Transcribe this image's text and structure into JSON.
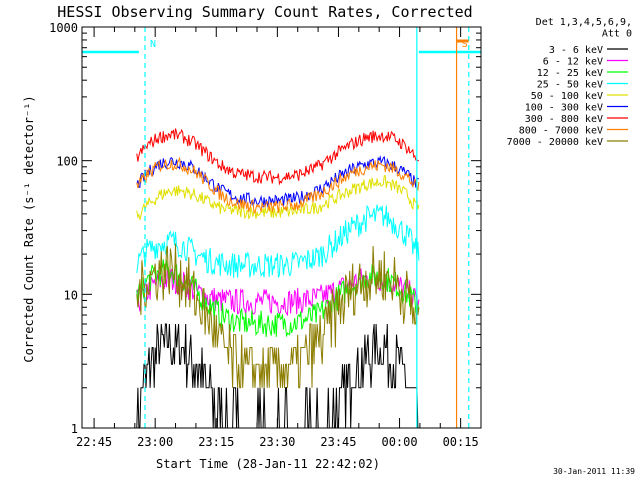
{
  "chart_data": {
    "type": "line",
    "title": "HESSI Observing Summary Count Rates, Corrected",
    "xlabel": "Start Time (28-Jan-11 22:42:02)",
    "ylabel": "Corrected Count Rate (s⁻¹ detector⁻¹)",
    "y_scale": "log",
    "ylim": [
      1,
      1000
    ],
    "xlim": [
      "22:42:02",
      "00:20:00"
    ],
    "x_ticks": [
      "22:45",
      "23:00",
      "23:15",
      "23:30",
      "23:45",
      "00:00",
      "00:15"
    ],
    "y_ticks": [
      "1",
      "10",
      "100",
      "1000"
    ],
    "legend_title_lines": [
      "Det 1,3,4,5,6,9,",
      "Att 0"
    ],
    "legend_position": "right",
    "timestamp": "30-Jan-2011 11:39",
    "data_gap_end": "22:55:30",
    "data_gap_start": "00:04:45",
    "series": [
      {
        "name": "3 - 6 keV",
        "color": "#000000",
        "x": [
          "22:55:30",
          "22:58",
          "23:01",
          "23:04",
          "23:07",
          "23:10",
          "23:13",
          "23:16",
          "23:20",
          "23:25",
          "23:30",
          "23:35",
          "23:40",
          "23:44",
          "23:48",
          "23:52",
          "23:56",
          "23:59",
          "00:02",
          "00:04"
        ],
        "y": [
          1.5,
          2.5,
          4.0,
          4.3,
          3.8,
          3.0,
          2.0,
          1.3,
          1.0,
          1.0,
          1.0,
          1.0,
          1.0,
          1.3,
          2.2,
          3.5,
          4.0,
          3.2,
          2.2,
          1.3
        ]
      },
      {
        "name": "6 - 12 keV",
        "color": "#ff00ff",
        "x": [
          "22:55:30",
          "22:58",
          "23:01",
          "23:04",
          "23:07",
          "23:10",
          "23:13",
          "23:16",
          "23:20",
          "23:25",
          "23:30",
          "23:35",
          "23:40",
          "23:44",
          "23:48",
          "23:52",
          "23:56",
          "23:59",
          "00:02",
          "00:04"
        ],
        "y": [
          8.5,
          10.5,
          12.5,
          13.0,
          12.0,
          10.5,
          9.5,
          9.0,
          8.8,
          8.8,
          8.8,
          8.9,
          9.3,
          10.5,
          12.0,
          13.2,
          13.0,
          12.0,
          10.5,
          9.0
        ]
      },
      {
        "name": "12 - 25 keV",
        "color": "#00ff00",
        "x": [
          "22:55:30",
          "22:58",
          "23:01",
          "23:04",
          "23:07",
          "23:10",
          "23:13",
          "23:16",
          "23:20",
          "23:25",
          "23:30",
          "23:35",
          "23:40",
          "23:44",
          "23:48",
          "23:52",
          "23:56",
          "23:59",
          "00:02",
          "00:04"
        ],
        "y": [
          9.5,
          12.5,
          14.5,
          15.0,
          13.0,
          10.5,
          8.5,
          7.0,
          6.2,
          6.0,
          6.0,
          6.2,
          7.0,
          9.0,
          11.5,
          13.5,
          13.5,
          12.0,
          10.0,
          8.5
        ]
      },
      {
        "name": "25 - 50 keV",
        "color": "#00ffff",
        "x": [
          "22:55:30",
          "22:58",
          "23:01",
          "23:04",
          "23:07",
          "23:10",
          "23:13",
          "23:16",
          "23:20",
          "23:25",
          "23:30",
          "23:35",
          "23:40",
          "23:44",
          "23:48",
          "23:52",
          "23:56",
          "23:59",
          "00:02",
          "00:04"
        ],
        "y": [
          17,
          21,
          24,
          25,
          23,
          20,
          18,
          17,
          16.5,
          16.5,
          16.5,
          17,
          19,
          24,
          31,
          37,
          39,
          34,
          27,
          21
        ]
      },
      {
        "name": "50 - 100 keV",
        "color": "#e0e000",
        "x": [
          "22:55:30",
          "22:58",
          "23:01",
          "23:04",
          "23:07",
          "23:10",
          "23:13",
          "23:16",
          "23:20",
          "23:25",
          "23:30",
          "23:35",
          "23:40",
          "23:44",
          "23:48",
          "23:52",
          "23:56",
          "23:59",
          "00:02",
          "00:04"
        ],
        "y": [
          38,
          46,
          55,
          60,
          59,
          55,
          49,
          44,
          42,
          41,
          41,
          42,
          45,
          52,
          60,
          67,
          70,
          64,
          55,
          45
        ]
      },
      {
        "name": "100 - 300 keV",
        "color": "#0000ff",
        "x": [
          "22:55:30",
          "22:58",
          "23:01",
          "23:04",
          "23:07",
          "23:10",
          "23:13",
          "23:16",
          "23:20",
          "23:25",
          "23:30",
          "23:35",
          "23:40",
          "23:44",
          "23:48",
          "23:52",
          "23:56",
          "23:59",
          "00:02",
          "00:04"
        ],
        "y": [
          65,
          80,
          95,
          100,
          96,
          86,
          72,
          60,
          53,
          50,
          50,
          52,
          60,
          72,
          85,
          95,
          97,
          90,
          78,
          67
        ]
      },
      {
        "name": "300 - 800 keV",
        "color": "#ff0000",
        "x": [
          "22:55:30",
          "22:58",
          "23:01",
          "23:04",
          "23:07",
          "23:10",
          "23:13",
          "23:16",
          "23:20",
          "23:25",
          "23:30",
          "23:35",
          "23:40",
          "23:44",
          "23:48",
          "23:52",
          "23:56",
          "23:59",
          "00:02",
          "00:04"
        ],
        "y": [
          105,
          130,
          150,
          158,
          150,
          132,
          110,
          92,
          80,
          76,
          75,
          78,
          90,
          110,
          132,
          150,
          155,
          145,
          125,
          105
        ]
      },
      {
        "name": "800 - 7000 keV",
        "color": "#ff8000",
        "x": [
          "22:55:30",
          "22:58",
          "23:01",
          "23:04",
          "23:07",
          "23:10",
          "23:13",
          "23:16",
          "23:20",
          "23:25",
          "23:30",
          "23:35",
          "23:40",
          "23:44",
          "23:48",
          "23:52",
          "23:56",
          "23:59",
          "00:02",
          "00:04"
        ],
        "y": [
          63,
          78,
          92,
          96,
          92,
          82,
          68,
          56,
          48,
          45,
          45,
          47,
          55,
          67,
          80,
          90,
          93,
          86,
          75,
          64
        ]
      },
      {
        "name": "7000 - 20000 keV",
        "color": "#8c7d00",
        "x": [
          "22:55:30",
          "22:58",
          "23:01",
          "23:04",
          "23:07",
          "23:10",
          "23:13",
          "23:16",
          "23:20",
          "23:25",
          "23:30",
          "23:35",
          "23:40",
          "23:44",
          "23:48",
          "23:52",
          "23:56",
          "23:59",
          "00:02",
          "00:04"
        ],
        "y": [
          9.5,
          12.5,
          15.0,
          15.5,
          13.0,
          9.5,
          6.5,
          4.2,
          3.0,
          2.7,
          2.7,
          3.0,
          4.3,
          7.0,
          10.5,
          13.5,
          14.0,
          12.5,
          9.5,
          7.0
        ]
      }
    ],
    "attenuator_state_line": {
      "color": "#00ffff",
      "segments": [
        [
          "22:42:02",
          "22:56:00"
        ],
        [
          "00:04:45",
          "00:20:00"
        ]
      ],
      "level": 650
    },
    "vertical_markers": [
      {
        "time": "22:57:30",
        "color": "#00ffff",
        "style": "dashed",
        "label": "N"
      },
      {
        "time": "00:04:15",
        "color": "#00ffff",
        "style": "solid",
        "label": ""
      },
      {
        "time": "00:14:00",
        "color": "#ff8000",
        "style": "solid",
        "label": "S"
      },
      {
        "time": "00:17:00",
        "color": "#00ffff",
        "style": "dashed",
        "label": ""
      }
    ]
  }
}
